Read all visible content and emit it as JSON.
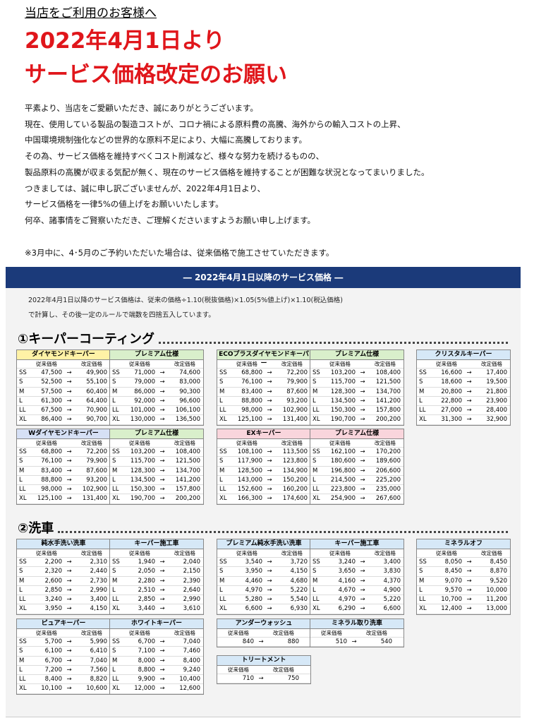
{
  "header": {
    "greeting": "当店をご利用のお客様へ",
    "title_lines": [
      "2022年4月1日より",
      "サービス価格改定のお願い"
    ]
  },
  "body": {
    "lines": [
      "平素より、当店をご愛顧いただき、誠にありがとうございます。",
      "現在、使用している製品の製造コストが、コロナ禍による原料費の高騰、海外からの輸入コストの上昇、",
      "中国環境規制強化などの世界的な原料不足により、大幅に高騰しております。",
      "その為、サービス価格を維持すべくコスト削減など、様々な努力を続けるものの、",
      "製品原料の高騰が収まる気配が無く、現在のサービス価格を維持することが困難な状況となってまいりました。",
      "つきましては、誠に申し訳ございませんが、2022年4月1日より、",
      "サービス価格を一律5%の値上げをお願いいたします。",
      "何卒、諸事情をご賢察いただき、ご理解くださいますようお願い申し上げます。"
    ],
    "note": "※3月中に、4･5月のご予約いただいた場合は、従来価格で施工させていただきます。"
  },
  "price_panel": {
    "title": "― 2022年4月1日以降のサービス価格 ―",
    "intro": [
      "2022年4月1日以降のサービス価格は、従来の価格÷1.10(税抜価格)×1.05(5%値上げ)×1.10(税込価格)",
      "で計算し、その後一定のルールで端数を四捨五入しています。"
    ],
    "labels": {
      "old": "従来価格",
      "new": "改定価格",
      "arrow": "→",
      "sizes": [
        "SS",
        "S",
        "M",
        "L",
        "LL",
        "XL"
      ]
    },
    "sections": [
      {
        "title": "①キーパーコーティング",
        "blocks": [
          {
            "halves": [
              {
                "name": "ダイヤモンドキーパー",
                "color": "#fff2a6",
                "rows": [
                  [
                    "47,500",
                    "49,900"
                  ],
                  [
                    "52,500",
                    "55,100"
                  ],
                  [
                    "57,500",
                    "60,400"
                  ],
                  [
                    "61,300",
                    "64,400"
                  ],
                  [
                    "67,500",
                    "70,900"
                  ],
                  [
                    "86,400",
                    "90,700"
                  ]
                ]
              },
              {
                "name": "プレミアム仕様",
                "color": "#d9efcb",
                "rows": [
                  [
                    "71,000",
                    "74,600"
                  ],
                  [
                    "79,000",
                    "83,000"
                  ],
                  [
                    "86,000",
                    "90,300"
                  ],
                  [
                    "92,000",
                    "96,600"
                  ],
                  [
                    "101,000",
                    "106,100"
                  ],
                  [
                    "130,000",
                    "136,500"
                  ]
                ]
              }
            ]
          },
          {
            "halves": [
              {
                "name": "ECOプラスダイヤモンドキーパー",
                "color": "#d9efcb",
                "rows": [
                  [
                    "68,800",
                    "72,200"
                  ],
                  [
                    "76,100",
                    "79,900"
                  ],
                  [
                    "83,400",
                    "87,600"
                  ],
                  [
                    "88,800",
                    "93,200"
                  ],
                  [
                    "98,000",
                    "102,900"
                  ],
                  [
                    "125,100",
                    "131,400"
                  ]
                ]
              },
              {
                "name": "プレミアム仕様",
                "color": "#d9efcb",
                "rows": [
                  [
                    "103,200",
                    "108,400"
                  ],
                  [
                    "115,700",
                    "121,500"
                  ],
                  [
                    "128,300",
                    "134,700"
                  ],
                  [
                    "134,500",
                    "141,200"
                  ],
                  [
                    "150,300",
                    "157,800"
                  ],
                  [
                    "190,700",
                    "200,200"
                  ]
                ]
              }
            ]
          },
          {
            "halves": [
              {
                "name": "クリスタルキーパー",
                "color": "#d6e8f7",
                "rows": [
                  [
                    "16,600",
                    "17,400"
                  ],
                  [
                    "18,600",
                    "19,500"
                  ],
                  [
                    "20,800",
                    "21,800"
                  ],
                  [
                    "22,800",
                    "23,900"
                  ],
                  [
                    "27,000",
                    "28,400"
                  ],
                  [
                    "31,300",
                    "32,900"
                  ]
                ]
              }
            ]
          },
          {
            "halves": [
              {
                "name": "Wダイヤモンドキーパー",
                "color": "#d6e0f5",
                "rows": [
                  [
                    "68,800",
                    "72,200"
                  ],
                  [
                    "76,100",
                    "79,900"
                  ],
                  [
                    "83,400",
                    "87,600"
                  ],
                  [
                    "88,800",
                    "93,200"
                  ],
                  [
                    "98,000",
                    "102,900"
                  ],
                  [
                    "125,100",
                    "131,400"
                  ]
                ]
              },
              {
                "name": "プレミアム仕様",
                "color": "#d9efcb",
                "rows": [
                  [
                    "103,200",
                    "108,400"
                  ],
                  [
                    "115,700",
                    "121,500"
                  ],
                  [
                    "128,300",
                    "134,700"
                  ],
                  [
                    "134,500",
                    "141,200"
                  ],
                  [
                    "150,300",
                    "157,800"
                  ],
                  [
                    "190,700",
                    "200,200"
                  ]
                ]
              }
            ]
          },
          {
            "halves": [
              {
                "name": "EXキーパー",
                "color": "#f9d5dc",
                "rows": [
                  [
                    "108,100",
                    "113,500"
                  ],
                  [
                    "117,900",
                    "123,800"
                  ],
                  [
                    "128,500",
                    "134,900"
                  ],
                  [
                    "143,000",
                    "150,200"
                  ],
                  [
                    "152,600",
                    "160,200"
                  ],
                  [
                    "166,300",
                    "174,600"
                  ]
                ]
              },
              {
                "name": "プレミアム仕様",
                "color": "#f9d5dc",
                "rows": [
                  [
                    "162,100",
                    "170,200"
                  ],
                  [
                    "180,600",
                    "189,600"
                  ],
                  [
                    "196,800",
                    "206,600"
                  ],
                  [
                    "214,500",
                    "225,200"
                  ],
                  [
                    "223,800",
                    "235,000"
                  ],
                  [
                    "254,900",
                    "267,600"
                  ]
                ]
              }
            ]
          }
        ]
      },
      {
        "title": "②洗車",
        "blocks": [
          {
            "halves": [
              {
                "name": "純水手洗い洗車",
                "color": "#d6e8f7",
                "rows": [
                  [
                    "2,200",
                    "2,310"
                  ],
                  [
                    "2,320",
                    "2,440"
                  ],
                  [
                    "2,600",
                    "2,730"
                  ],
                  [
                    "2,850",
                    "2,990"
                  ],
                  [
                    "3,240",
                    "3,400"
                  ],
                  [
                    "3,950",
                    "4,150"
                  ]
                ]
              },
              {
                "name": "キーパー施工車",
                "color": "#d6e8f7",
                "rows": [
                  [
                    "1,940",
                    "2,040"
                  ],
                  [
                    "2,050",
                    "2,150"
                  ],
                  [
                    "2,280",
                    "2,390"
                  ],
                  [
                    "2,510",
                    "2,640"
                  ],
                  [
                    "2,850",
                    "2,990"
                  ],
                  [
                    "3,440",
                    "3,610"
                  ]
                ]
              }
            ]
          },
          {
            "halves": [
              {
                "name": "プレミアム純水手洗い洗車",
                "color": "#d6e8f7",
                "rows": [
                  [
                    "3,540",
                    "3,720"
                  ],
                  [
                    "3,950",
                    "4,150"
                  ],
                  [
                    "4,460",
                    "4,680"
                  ],
                  [
                    "4,970",
                    "5,220"
                  ],
                  [
                    "5,280",
                    "5,540"
                  ],
                  [
                    "6,600",
                    "6,930"
                  ]
                ]
              },
              {
                "name": "キーパー施工車",
                "color": "#d6e8f7",
                "rows": [
                  [
                    "3,240",
                    "3,400"
                  ],
                  [
                    "3,650",
                    "3,830"
                  ],
                  [
                    "4,160",
                    "4,370"
                  ],
                  [
                    "4,670",
                    "4,900"
                  ],
                  [
                    "4,970",
                    "5,220"
                  ],
                  [
                    "6,290",
                    "6,600"
                  ]
                ]
              }
            ]
          },
          {
            "halves": [
              {
                "name": "ミネラルオフ",
                "color": "#d6e8f7",
                "rows": [
                  [
                    "8,050",
                    "8,450"
                  ],
                  [
                    "8,450",
                    "8,870"
                  ],
                  [
                    "9,070",
                    "9,520"
                  ],
                  [
                    "9,570",
                    "10,000"
                  ],
                  [
                    "10,700",
                    "11,200"
                  ],
                  [
                    "12,400",
                    "13,000"
                  ]
                ]
              }
            ]
          },
          {
            "halves": [
              {
                "name": "ピュアキーパー",
                "color": "#d6e8f7",
                "rows": [
                  [
                    "5,700",
                    "5,990"
                  ],
                  [
                    "6,100",
                    "6,410"
                  ],
                  [
                    "6,700",
                    "7,040"
                  ],
                  [
                    "7,200",
                    "7,560"
                  ],
                  [
                    "8,400",
                    "8,820"
                  ],
                  [
                    "10,100",
                    "10,600"
                  ]
                ]
              },
              {
                "name": "ホワイトキーパー",
                "color": "#d6e8f7",
                "rows": [
                  [
                    "6,700",
                    "7,040"
                  ],
                  [
                    "7,100",
                    "7,460"
                  ],
                  [
                    "8,000",
                    "8,400"
                  ],
                  [
                    "8,800",
                    "9,240"
                  ],
                  [
                    "9,900",
                    "10,400"
                  ],
                  [
                    "12,000",
                    "12,600"
                  ]
                ]
              }
            ]
          },
          {
            "halves": [
              {
                "name": "アンダーウォッシュ",
                "color": "#d6e8f7",
                "rows": [
                  [
                    "840",
                    "880"
                  ]
                ]
              },
              {
                "name": "ミネラル取り洗車",
                "color": "#d6e8f7",
                "rows": [
                  [
                    "510",
                    "540"
                  ]
                ]
              }
            ]
          },
          {
            "halves": [
              {
                "name": "トリートメント",
                "color": "#d6e8f7",
                "rows": [
                  [
                    "710",
                    "750"
                  ]
                ]
              }
            ]
          }
        ]
      }
    ]
  }
}
